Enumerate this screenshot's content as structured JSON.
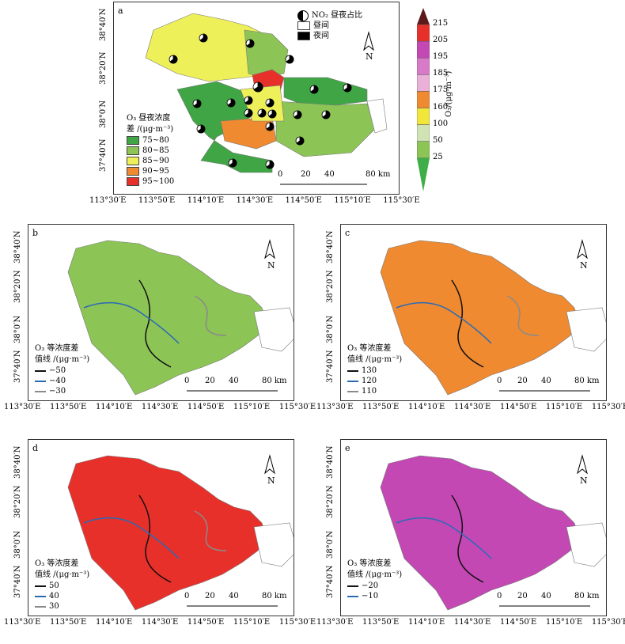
{
  "colorbar": {
    "title": "O₃/(μg·m⁻³)",
    "ticks": [
      "215",
      "205",
      "195",
      "185",
      "175",
      "160",
      "100",
      "50",
      "25"
    ],
    "colors": [
      "#5c1a1a",
      "#e8302a",
      "#c448b4",
      "#d97ac8",
      "#eab0d8",
      "#f08a30",
      "#f2e63a",
      "#cfe3b4",
      "#8cc456",
      "#3fae49"
    ]
  },
  "axes": {
    "lon_ticks": [
      "113°30′E",
      "113°50′E",
      "114°10′E",
      "114°30′E",
      "114°50′E",
      "115°10′E",
      "115°30′E"
    ],
    "lat_ticks": [
      "38°40′N",
      "38°20′N",
      "38°0′N",
      "37°40′N"
    ]
  },
  "north_label": "N",
  "scale": {
    "ticks": [
      "0",
      "20",
      "40",
      "80 km"
    ]
  },
  "panel_a": {
    "letter": "a",
    "no2_title": "NO₂ 昼夜占比",
    "no2_day": "昼间",
    "no2_night": "夜间",
    "legend_title_1": "O₃ 昼夜浓度",
    "legend_title_2": "差 /(μg·m⁻³)",
    "classes": [
      {
        "label": "75~80",
        "color": "#3fa545"
      },
      {
        "label": "80~85",
        "color": "#8cc456"
      },
      {
        "label": "85~90",
        "color": "#eef05a"
      },
      {
        "label": "90~95",
        "color": "#f08a30"
      },
      {
        "label": "95~100",
        "color": "#e8302a"
      }
    ]
  },
  "panels": [
    {
      "letter": "b",
      "title_1": "O₃ 等浓度差",
      "title_2": "值线 /(μg·m⁻³)",
      "lines": [
        {
          "label": "−50",
          "color": "#111111"
        },
        {
          "label": "−40",
          "color": "#2a6ab5"
        },
        {
          "label": "−30",
          "color": "#8a8a8a"
        }
      ],
      "fill": "#8cc456"
    },
    {
      "letter": "c",
      "title_1": "O₃ 等浓度差",
      "title_2": "值线 /(μg·m⁻³)",
      "lines": [
        {
          "label": "130",
          "color": "#111111"
        },
        {
          "label": "120",
          "color": "#2a6ab5"
        },
        {
          "label": "110",
          "color": "#8a8a8a"
        }
      ],
      "fill": "#f08a30"
    },
    {
      "letter": "d",
      "title_1": "O₃ 等浓度差",
      "title_2": "值线 /(μg·m⁻³)",
      "lines": [
        {
          "label": "50",
          "color": "#111111"
        },
        {
          "label": "40",
          "color": "#2a6ab5"
        },
        {
          "label": "30",
          "color": "#8a8a8a"
        }
      ],
      "fill": "#e8302a"
    },
    {
      "letter": "e",
      "title_1": "O₃ 等浓度差",
      "title_2": "值线 /(μg·m⁻³)",
      "lines": [
        {
          "label": "−20",
          "color": "#111111"
        },
        {
          "label": "−10",
          "color": "#2a6ab5"
        }
      ],
      "fill": "#c448b4"
    }
  ]
}
